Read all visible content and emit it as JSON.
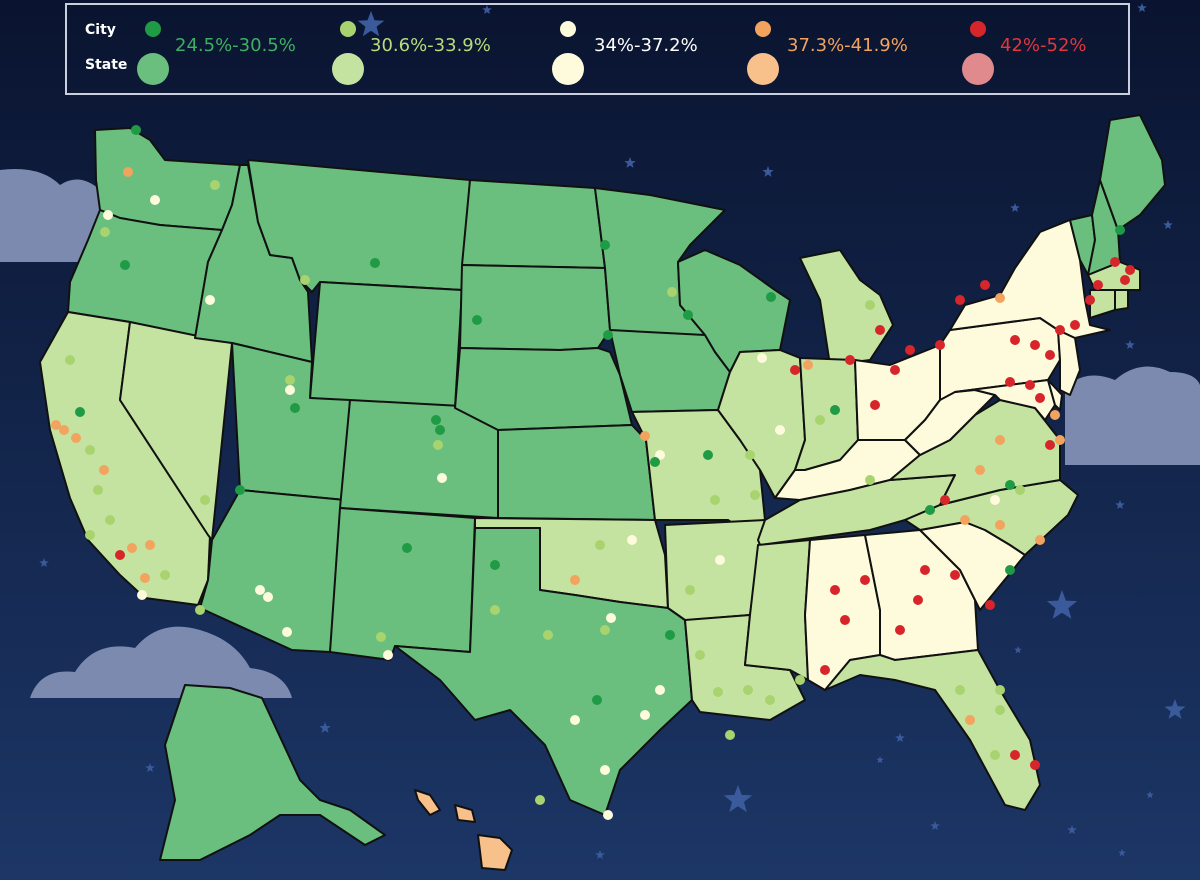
{
  "legend": {
    "city_label": "City",
    "state_label": "State",
    "items": [
      {
        "range": "24.5%-30.5%",
        "color": "#6abf7e",
        "city_color": "#1f9a45",
        "text_color": "#3cb060"
      },
      {
        "range": "30.6%-33.9%",
        "color": "#c4e3a0",
        "city_color": "#a9d36f",
        "text_color": "#b7dc7a"
      },
      {
        "range": "34%-37.2%",
        "color": "#fdfbdc",
        "city_color": "#fdfbdc",
        "text_color": "#ffffff"
      },
      {
        "range": "37.3%-41.9%",
        "color": "#f8c08a",
        "city_color": "#f2a35e",
        "text_color": "#f2a35e"
      },
      {
        "range": "42%-52%",
        "color": "#e08a8e",
        "city_color": "#d7262b",
        "text_color": "#e0373c"
      }
    ]
  },
  "map": {
    "ocean_color": "#0c1a3e",
    "border_color": "#111111",
    "cloud_color": "#7b8aae",
    "star_color": "#3a5a9c",
    "states": {
      "WA": 0,
      "OR": 0,
      "ID": 0,
      "MT": 0,
      "WY": 0,
      "UT": 0,
      "CO": 0,
      "AZ": 0,
      "NM": 0,
      "ND": 0,
      "SD": 0,
      "NE": 0,
      "KS": 0,
      "MN": 0,
      "IA": 0,
      "WI": 0,
      "TX": 0,
      "AK": 0,
      "VT": 0,
      "NH": 0,
      "ME": 0,
      "CA": 1,
      "NV": 1,
      "OK": 1,
      "MO": 1,
      "AR": 1,
      "LA": 1,
      "MS": 1,
      "IL": 1,
      "IN": 1,
      "MI": 1,
      "TN": 1,
      "NC": 1,
      "VA": 1,
      "FL": 1,
      "MA": 1,
      "RI": 1,
      "CT": 1,
      "KY": 2,
      "OH": 2,
      "WV": 2,
      "PA": 2,
      "NY": 2,
      "AL": 2,
      "GA": 2,
      "SC": 2,
      "MD": 2,
      "NJ": 2,
      "DE": 2,
      "HI": 3
    }
  }
}
